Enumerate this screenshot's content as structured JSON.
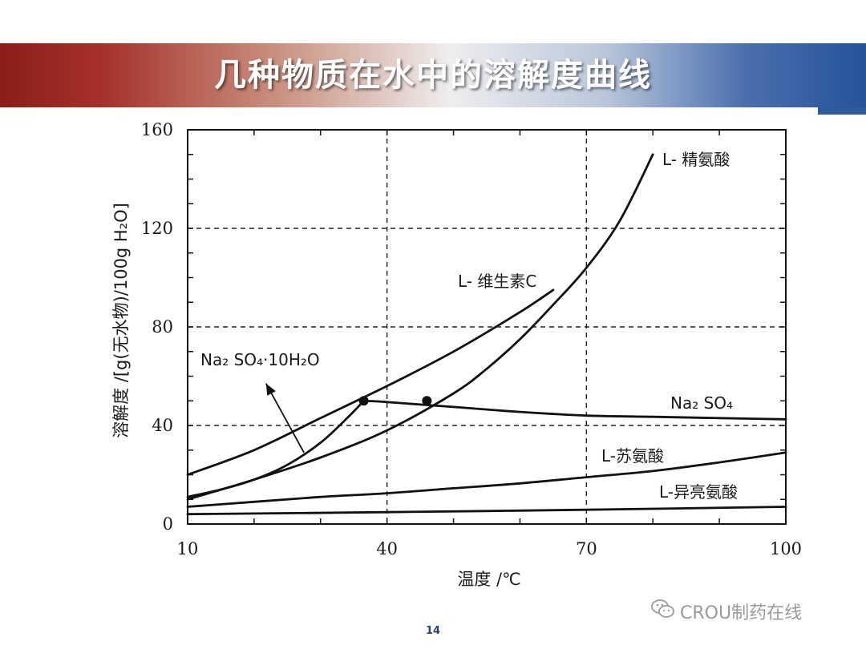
{
  "slide": {
    "title": "几种物质在水中的溶解度曲线",
    "page_number": "14",
    "watermark": "CROU制药在线",
    "watermark_icon": "wechat-icon"
  },
  "colors": {
    "banner_left": "#8c1d18",
    "banner_right": "#27539a",
    "curve": "#111111",
    "grid": "#222222"
  },
  "chart_data": {
    "type": "line",
    "xlabel": "温度 /℃",
    "ylabel": "溶解度 /[g(无水物)/100g H₂O]",
    "xlim": [
      10,
      100
    ],
    "ylim": [
      0,
      160
    ],
    "xticks": [
      10,
      40,
      70,
      100
    ],
    "xtick_labels": [
      "10",
      "40",
      "70",
      "100"
    ],
    "yticks": [
      0,
      40,
      80,
      120,
      160
    ],
    "ytick_labels": [
      "0",
      "40",
      "80",
      "120",
      "160"
    ],
    "grid": "dashed at major ticks",
    "series": [
      {
        "name": "L-精氨酸",
        "x": [
          10,
          20,
          30,
          40,
          50,
          55,
          60,
          65,
          70,
          75,
          80
        ],
        "y": [
          10,
          18,
          27,
          38,
          53,
          63,
          75,
          89,
          104,
          123,
          150
        ]
      },
      {
        "name": "L-维生素C",
        "x": [
          10,
          20,
          30,
          40,
          50,
          60,
          65
        ],
        "y": [
          20,
          30,
          43,
          56,
          70,
          86,
          95
        ]
      },
      {
        "name": "Na₂SO₄·10H₂O",
        "x": [
          10,
          15,
          20,
          25,
          30,
          34,
          36.5
        ],
        "y": [
          11,
          14,
          18,
          24,
          33,
          43,
          50
        ]
      },
      {
        "name": "Na₂SO₄",
        "x": [
          36.5,
          40,
          50,
          60,
          70,
          80,
          90,
          100
        ],
        "y": [
          50,
          49.5,
          47.5,
          45.5,
          44,
          43.5,
          43,
          42.5
        ]
      },
      {
        "name": "L-苏氨酸",
        "x": [
          10,
          20,
          30,
          40,
          50,
          60,
          70,
          80,
          90,
          100
        ],
        "y": [
          7,
          9,
          11,
          12.5,
          14.5,
          16.5,
          19,
          21.5,
          25,
          29
        ]
      },
      {
        "name": "L-异亮氨酸",
        "x": [
          10,
          40,
          70,
          100
        ],
        "y": [
          4,
          4.8,
          5.8,
          7
        ]
      }
    ],
    "markers": [
      {
        "label": "transition point",
        "x": 36.5,
        "y": 50
      },
      {
        "label": "intersection",
        "x": 46,
        "y": 50
      }
    ],
    "labels": [
      {
        "text": "L- 精氨酸",
        "series": "L-精氨酸"
      },
      {
        "text": "L- 维生素C",
        "series": "L-维生素C"
      },
      {
        "text": "Na₂ SO₄·10H₂O",
        "series": "Na₂SO₄·10H₂O"
      },
      {
        "text": "Na₂ SO₄",
        "series": "Na₂SO₄"
      },
      {
        "text": "L-苏氨酸",
        "series": "L-苏氨酸"
      },
      {
        "text": "L-异亮氨酸",
        "series": "L-异亮氨酸"
      }
    ]
  }
}
